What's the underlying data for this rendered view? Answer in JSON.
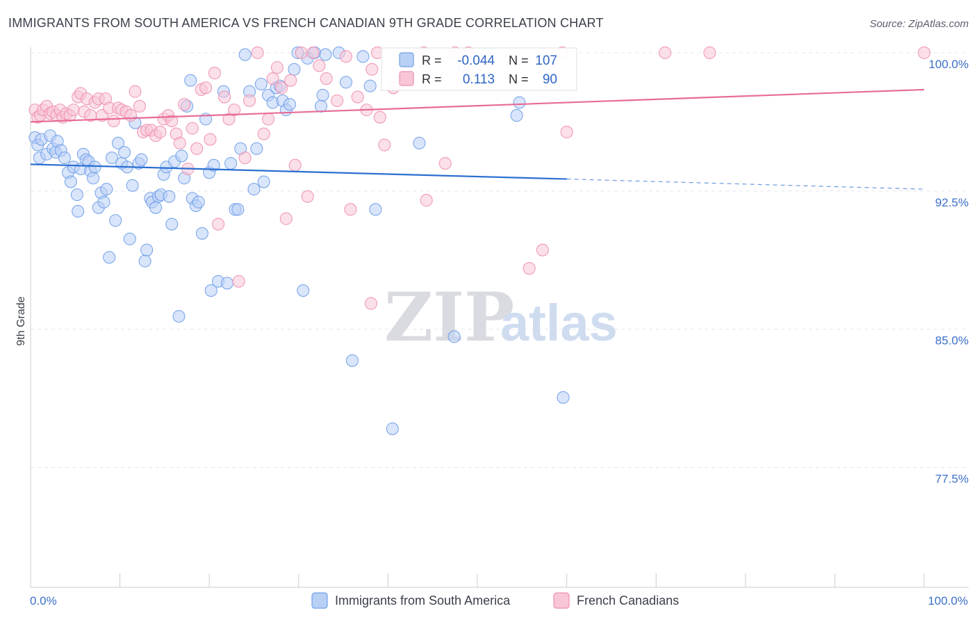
{
  "chart_data": {
    "type": "scatter",
    "title": "IMMIGRANTS FROM SOUTH AMERICA VS FRENCH CANADIAN 9TH GRADE CORRELATION CHART",
    "source": "Source: ZipAtlas.com",
    "ylabel": "9th Grade",
    "xlim": [
      0,
      100
    ],
    "ylim": [
      71.0,
      100.6
    ],
    "x_ticks": [
      {
        "value": 0,
        "label": "0.0%"
      },
      {
        "value": 100,
        "label": "100.0%"
      }
    ],
    "y_ticks": [
      {
        "value": 100.0,
        "label": "100.0%"
      },
      {
        "value": 92.5,
        "label": "92.5%"
      },
      {
        "value": 85.0,
        "label": "85.0%"
      },
      {
        "value": 77.5,
        "label": "77.5%"
      }
    ],
    "watermark": {
      "part1": "ZIP",
      "part2": "atlas"
    },
    "legend": {
      "items": [
        {
          "label": "Immigrants from South America",
          "color": "#6f9ee8",
          "fill": "#b9d0f5"
        },
        {
          "label": "French Canadians",
          "color": "#ee8fb0",
          "fill": "#f8c6d7"
        }
      ]
    },
    "stats": [
      {
        "r_label": "R =",
        "r_value": "-0.044",
        "n_label": "N =",
        "n_value": "107"
      },
      {
        "r_label": "R =",
        "r_value": "0.113",
        "n_label": "N =",
        "n_value": "90"
      }
    ],
    "series": [
      {
        "name": "Immigrants from South America",
        "color": "#6f9ee8",
        "trend": {
          "x0": 0,
          "y0": 93.95,
          "x1": 60,
          "y1": 93.15,
          "dashed_to": 100,
          "dashed_y": 92.6,
          "color": "#2a6fd1"
        },
        "points": [
          [
            0.5,
            95.4
          ],
          [
            0.8,
            95.0
          ],
          [
            1.0,
            94.3
          ],
          [
            1.2,
            95.3
          ],
          [
            1.8,
            94.5
          ],
          [
            2.2,
            95.5
          ],
          [
            2.5,
            94.8
          ],
          [
            2.8,
            94.6
          ],
          [
            3.0,
            95.2
          ],
          [
            3.4,
            94.7
          ],
          [
            3.8,
            94.3
          ],
          [
            4.2,
            93.5
          ],
          [
            4.5,
            93.0
          ],
          [
            4.8,
            93.8
          ],
          [
            5.2,
            92.3
          ],
          [
            5.3,
            91.4
          ],
          [
            5.6,
            93.7
          ],
          [
            5.9,
            94.5
          ],
          [
            6.2,
            94.2
          ],
          [
            6.5,
            94.1
          ],
          [
            6.7,
            93.6
          ],
          [
            7.0,
            93.2
          ],
          [
            7.2,
            93.8
          ],
          [
            7.6,
            91.6
          ],
          [
            7.9,
            92.4
          ],
          [
            8.2,
            91.9
          ],
          [
            8.5,
            92.6
          ],
          [
            8.8,
            88.9
          ],
          [
            9.1,
            94.3
          ],
          [
            9.5,
            90.9
          ],
          [
            9.8,
            95.1
          ],
          [
            10.2,
            94.0
          ],
          [
            10.5,
            94.6
          ],
          [
            10.8,
            93.8
          ],
          [
            11.1,
            89.9
          ],
          [
            11.4,
            92.8
          ],
          [
            11.7,
            96.2
          ],
          [
            12.1,
            94.0
          ],
          [
            12.4,
            94.2
          ],
          [
            12.8,
            88.7
          ],
          [
            13.0,
            89.3
          ],
          [
            13.4,
            92.1
          ],
          [
            13.6,
            91.9
          ],
          [
            14.0,
            91.6
          ],
          [
            14.3,
            92.2
          ],
          [
            14.6,
            92.3
          ],
          [
            14.9,
            93.4
          ],
          [
            15.2,
            93.8
          ],
          [
            15.5,
            92.2
          ],
          [
            15.8,
            90.7
          ],
          [
            16.1,
            94.1
          ],
          [
            16.6,
            85.7
          ],
          [
            16.9,
            94.4
          ],
          [
            17.2,
            93.2
          ],
          [
            17.5,
            97.1
          ],
          [
            17.9,
            98.5
          ],
          [
            18.1,
            92.1
          ],
          [
            18.5,
            91.7
          ],
          [
            18.8,
            91.9
          ],
          [
            19.2,
            90.2
          ],
          [
            19.6,
            96.4
          ],
          [
            20.0,
            93.5
          ],
          [
            20.2,
            87.1
          ],
          [
            20.5,
            93.9
          ],
          [
            21.0,
            87.6
          ],
          [
            21.6,
            97.9
          ],
          [
            22.0,
            87.5
          ],
          [
            22.4,
            94.0
          ],
          [
            22.9,
            91.5
          ],
          [
            23.2,
            91.5
          ],
          [
            23.5,
            94.8
          ],
          [
            24.0,
            99.9
          ],
          [
            24.5,
            97.9
          ],
          [
            25.0,
            92.6
          ],
          [
            25.3,
            94.8
          ],
          [
            25.8,
            98.3
          ],
          [
            26.1,
            93.0
          ],
          [
            26.6,
            97.7
          ],
          [
            27.1,
            97.3
          ],
          [
            27.5,
            98.1
          ],
          [
            27.9,
            98.2
          ],
          [
            28.2,
            97.4
          ],
          [
            28.6,
            96.9
          ],
          [
            29.0,
            97.2
          ],
          [
            29.5,
            99.1
          ],
          [
            29.9,
            100.0
          ],
          [
            30.5,
            87.1
          ],
          [
            31.0,
            99.7
          ],
          [
            31.8,
            100.0
          ],
          [
            32.5,
            97.1
          ],
          [
            32.7,
            97.7
          ],
          [
            33.0,
            99.9
          ],
          [
            34.5,
            100.0
          ],
          [
            35.3,
            98.4
          ],
          [
            36.0,
            83.3
          ],
          [
            37.2,
            99.8
          ],
          [
            38.0,
            98.2
          ],
          [
            38.6,
            91.5
          ],
          [
            40.5,
            79.6
          ],
          [
            43.5,
            95.1
          ],
          [
            47.4,
            84.6
          ],
          [
            54.4,
            96.6
          ],
          [
            54.7,
            97.3
          ],
          [
            59.6,
            81.3
          ],
          [
            58.0,
            98.6
          ],
          [
            48.5,
            99.2
          ]
        ]
      },
      {
        "name": "French Canadians",
        "color": "#ee8fb0",
        "trend": {
          "x0": 0,
          "y0": 96.25,
          "x1": 100,
          "y1": 98.0,
          "color": "#e76b97"
        },
        "points": [
          [
            0.5,
            96.9
          ],
          [
            0.8,
            96.5
          ],
          [
            1.1,
            96.6
          ],
          [
            1.4,
            96.9
          ],
          [
            1.8,
            97.1
          ],
          [
            2.2,
            96.7
          ],
          [
            2.5,
            96.8
          ],
          [
            2.9,
            96.6
          ],
          [
            3.3,
            96.9
          ],
          [
            3.6,
            96.5
          ],
          [
            4.0,
            96.7
          ],
          [
            4.4,
            96.6
          ],
          [
            4.8,
            96.9
          ],
          [
            5.3,
            97.6
          ],
          [
            5.6,
            97.8
          ],
          [
            6.0,
            96.8
          ],
          [
            6.3,
            97.5
          ],
          [
            6.7,
            96.6
          ],
          [
            7.2,
            97.3
          ],
          [
            7.6,
            97.5
          ],
          [
            8.0,
            96.6
          ],
          [
            8.4,
            97.5
          ],
          [
            8.8,
            97.0
          ],
          [
            9.3,
            96.3
          ],
          [
            9.8,
            97.0
          ],
          [
            10.2,
            96.9
          ],
          [
            10.7,
            96.8
          ],
          [
            11.2,
            96.6
          ],
          [
            11.7,
            97.9
          ],
          [
            12.2,
            97.1
          ],
          [
            12.6,
            95.7
          ],
          [
            13.0,
            95.8
          ],
          [
            13.5,
            95.8
          ],
          [
            14.0,
            95.5
          ],
          [
            14.5,
            95.7
          ],
          [
            14.9,
            96.4
          ],
          [
            15.4,
            96.6
          ],
          [
            15.8,
            96.3
          ],
          [
            16.3,
            95.6
          ],
          [
            16.7,
            95.1
          ],
          [
            17.2,
            97.2
          ],
          [
            17.6,
            93.7
          ],
          [
            18.1,
            95.9
          ],
          [
            18.6,
            94.8
          ],
          [
            19.1,
            98.0
          ],
          [
            19.6,
            98.1
          ],
          [
            20.1,
            95.3
          ],
          [
            20.6,
            98.9
          ],
          [
            21.0,
            90.7
          ],
          [
            21.7,
            97.6
          ],
          [
            22.2,
            96.4
          ],
          [
            22.8,
            96.9
          ],
          [
            23.3,
            87.6
          ],
          [
            24.0,
            94.3
          ],
          [
            24.5,
            97.4
          ],
          [
            25.4,
            100.0
          ],
          [
            26.1,
            95.6
          ],
          [
            26.6,
            96.4
          ],
          [
            27.1,
            98.6
          ],
          [
            27.6,
            99.2
          ],
          [
            28.1,
            98.1
          ],
          [
            28.6,
            91.0
          ],
          [
            29.1,
            98.5
          ],
          [
            29.6,
            93.9
          ],
          [
            30.3,
            100.0
          ],
          [
            31.0,
            92.2
          ],
          [
            31.6,
            100.0
          ],
          [
            32.3,
            99.3
          ],
          [
            33.1,
            98.6
          ],
          [
            34.3,
            97.4
          ],
          [
            35.3,
            99.8
          ],
          [
            35.8,
            91.5
          ],
          [
            36.6,
            97.6
          ],
          [
            37.6,
            96.9
          ],
          [
            38.2,
            99.1
          ],
          [
            38.8,
            100.0
          ],
          [
            38.1,
            86.4
          ],
          [
            39.1,
            96.5
          ],
          [
            39.6,
            95.0
          ],
          [
            40.6,
            98.1
          ],
          [
            44.0,
            100.0
          ],
          [
            44.3,
            92.0
          ],
          [
            46.4,
            94.0
          ],
          [
            47.5,
            100.0
          ],
          [
            55.8,
            88.3
          ],
          [
            57.3,
            89.3
          ],
          [
            59.5,
            100.0
          ],
          [
            60.0,
            95.7
          ],
          [
            71.0,
            100.0
          ],
          [
            76.0,
            100.0
          ],
          [
            100.0,
            100.0
          ],
          [
            49.0,
            100.0
          ]
        ]
      }
    ]
  }
}
